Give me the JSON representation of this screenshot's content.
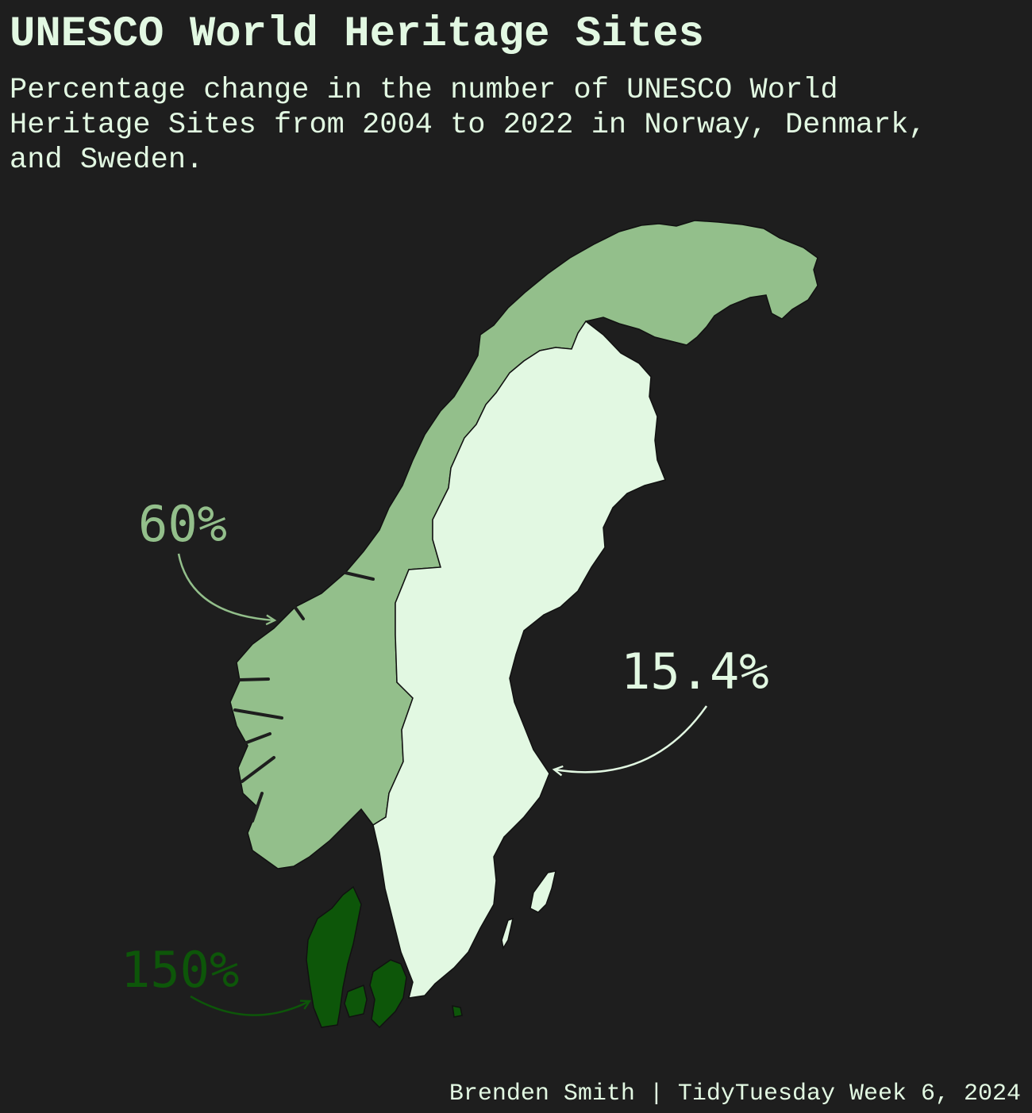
{
  "title": "UNESCO World Heritage Sites",
  "subtitle": "Percentage change in the number of UNESCO World Heritage Sites from 2004 to 2022 in Norway, Denmark, and Sweden.",
  "caption": "Brenden Smith | TidyTuesday Week 6, 2024",
  "background_color": "#1e1e1e",
  "text_color": "#e2f8e2",
  "regions": [
    {
      "country": "Norway",
      "label": "60%",
      "change_pct": 60,
      "color": "#93bf8b"
    },
    {
      "country": "Sweden",
      "label": "15.4%",
      "change_pct": 15.4,
      "color": "#e2f8e2"
    },
    {
      "country": "Denmark",
      "label": "150%",
      "change_pct": 150,
      "color": "#0d5609"
    }
  ]
}
